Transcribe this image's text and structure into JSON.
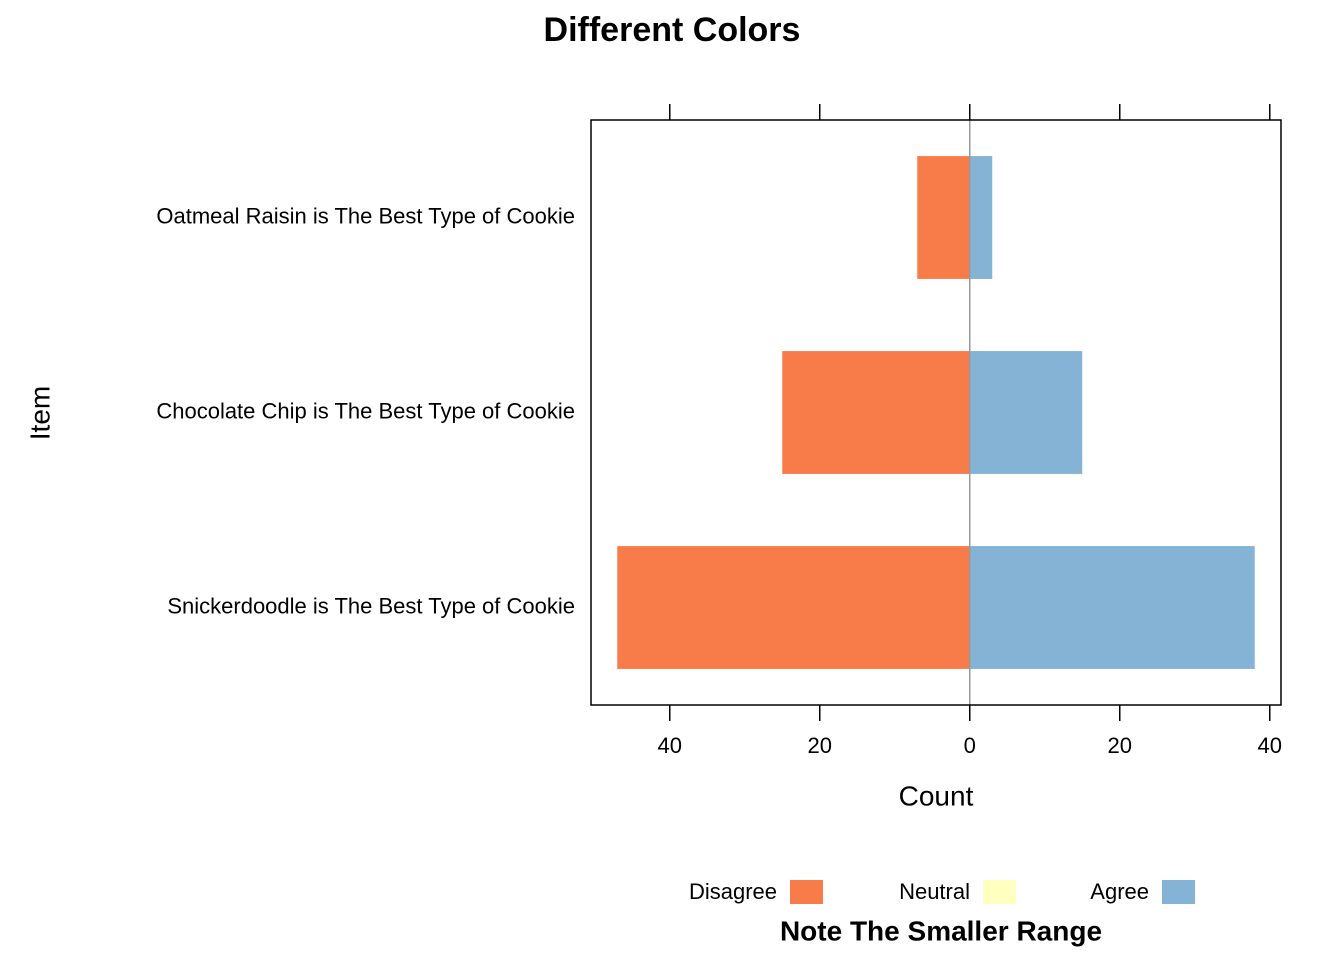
{
  "chart_data": {
    "type": "diverging-bar",
    "title": "Different Colors",
    "subtitle": "Note The Smaller Range",
    "x_label": "Count",
    "y_label": "Item",
    "categories": [
      "Oatmeal Raisin is The Best Type of Cookie",
      "Chocolate Chip is The Best Type of Cookie",
      "Snickerdoodle is The Best Type of Cookie"
    ],
    "series": [
      {
        "name": "Disagree",
        "color": "#f77c4a",
        "values": [
          -7,
          -25,
          -47
        ]
      },
      {
        "name": "Neutral",
        "color": "#ffffbf",
        "values": [
          0,
          0,
          0
        ]
      },
      {
        "name": "Agree",
        "color": "#84b3d5",
        "values": [
          3,
          15,
          38
        ]
      }
    ],
    "xlim": [
      -50.5,
      41.5
    ],
    "xticks": [
      {
        "value": -40,
        "label": "40"
      },
      {
        "value": -20,
        "label": "20"
      },
      0,
      20,
      40
    ],
    "reference_line_color": "#999999"
  }
}
